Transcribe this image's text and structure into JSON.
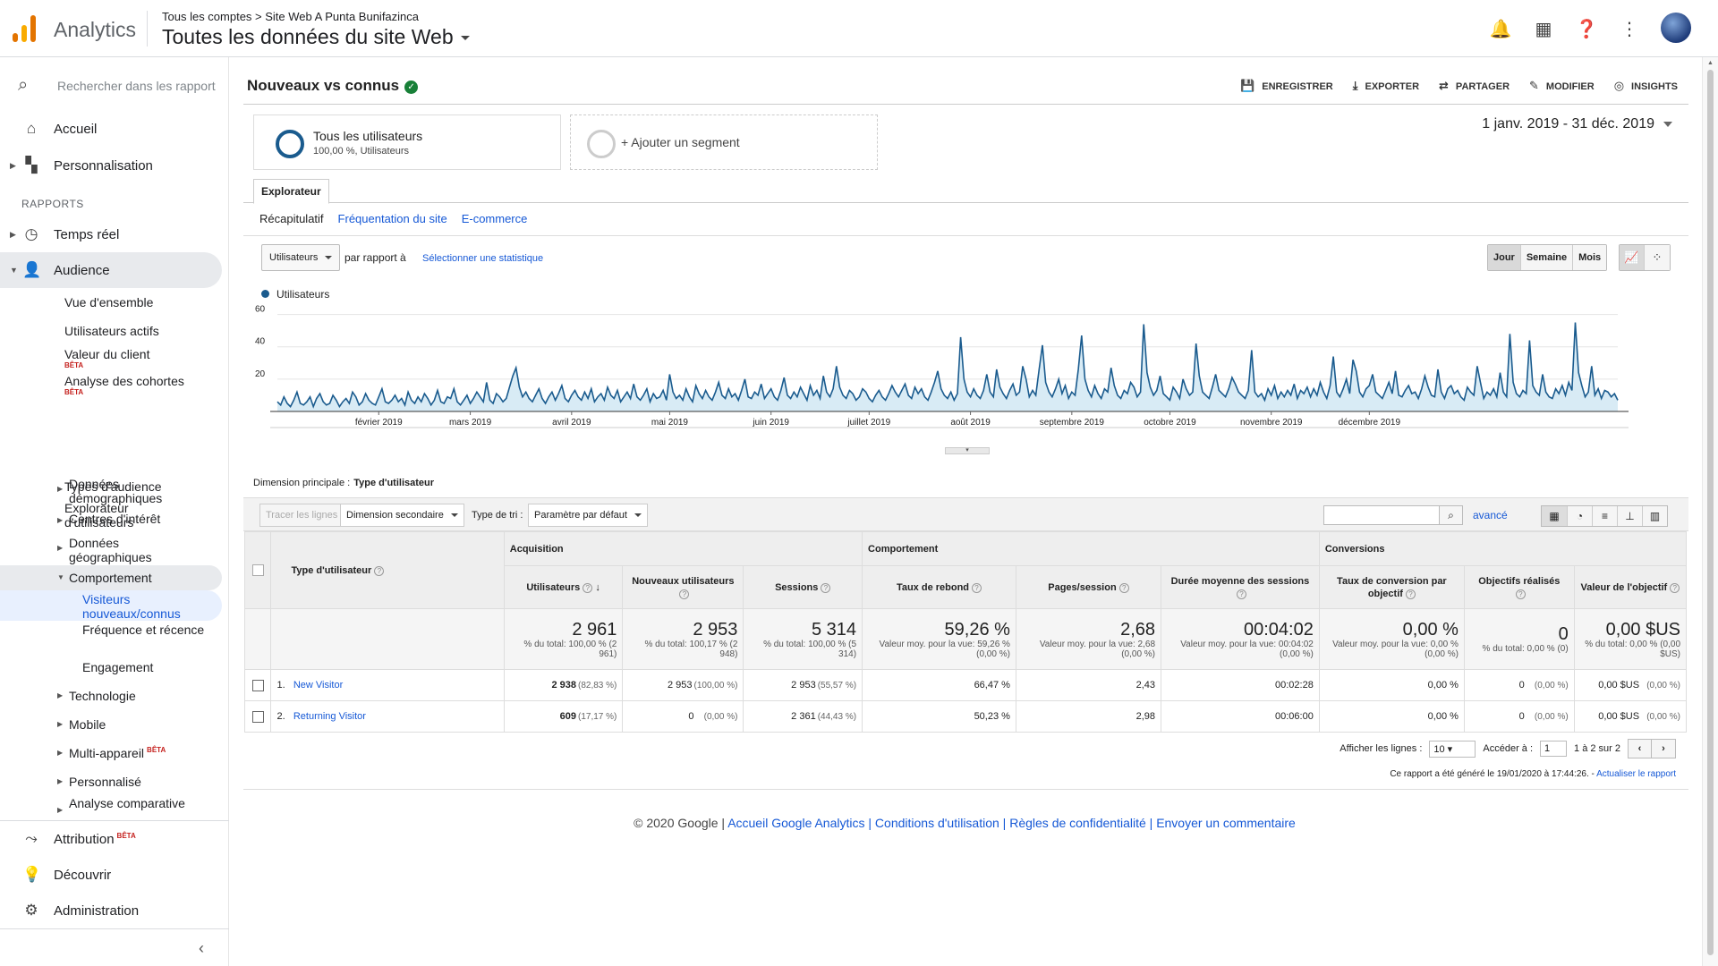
{
  "header": {
    "app_name": "Analytics",
    "breadcrumb": "Tous les comptes > Site Web A Punta Bunifazinca",
    "view_title": "Toutes les données du site Web"
  },
  "sidebar": {
    "search_placeholder": "Rechercher dans les rapport",
    "home": "Accueil",
    "custom": "Personnalisation",
    "reports_label": "RAPPORTS",
    "realtime": "Temps réel",
    "audience": "Audience",
    "audience_items": {
      "overview": "Vue d'ensemble",
      "active_users": "Utilisateurs actifs",
      "lifetime_value": "Valeur du client",
      "cohort": "Analyse des cohortes",
      "audiences": "Types d'audience",
      "user_explorer": "Explorateur d'utilisateurs",
      "demographics": "Données démographiques",
      "interests": "Centres d'intérêt",
      "geo": "Données géographiques",
      "behavior": "Comportement",
      "new_vs_returning": "Visiteurs nouveaux/connus",
      "frequency": "Fréquence et récence",
      "engagement": "Engagement",
      "technology": "Technologie",
      "mobile": "Mobile",
      "cross_device": "Multi-appareil",
      "custom": "Personnalisé",
      "benchmarking": "Analyse comparative"
    },
    "beta": "BÊTA",
    "attribution": "Attribution",
    "discover": "Découvrir",
    "admin": "Administration"
  },
  "report": {
    "title": "Nouveaux vs connus",
    "actions": [
      "ENREGISTRER",
      "EXPORTER",
      "PARTAGER",
      "MODIFIER",
      "INSIGHTS"
    ],
    "segment_title": "Tous les utilisateurs",
    "segment_sub": "100,00 %, Utilisateurs",
    "add_segment": "+ Ajouter un segment",
    "date_range": "1 janv. 2019 - 31 déc. 2019",
    "tab": "Explorateur",
    "subtabs": [
      "Récapitulatif",
      "Fréquentation du site",
      "E-commerce"
    ],
    "metric": "Utilisateurs",
    "vs": "par rapport à",
    "select_metric": "Sélectionner une statistique",
    "periods": [
      "Jour",
      "Semaine",
      "Mois"
    ],
    "primary_dim_label": "Dimension principale :",
    "primary_dim": "Type d'utilisateur"
  },
  "chart_data": {
    "type": "area",
    "series": [
      {
        "name": "Utilisateurs",
        "color": "#1a5b8e"
      }
    ],
    "yticks": [
      20,
      40,
      60
    ],
    "ylim": [
      0,
      62
    ],
    "xlabels": [
      "février 2019",
      "mars 2019",
      "avril 2019",
      "mai 2019",
      "juin 2019",
      "juillet 2019",
      "août 2019",
      "septembre 2019",
      "octobre 2019",
      "novembre 2019",
      "décembre 2019"
    ],
    "note": "daily values Jan 1 – Dec 31 2019, approx.",
    "values": [
      6,
      4,
      9,
      5,
      3,
      7,
      12,
      5,
      4,
      6,
      9,
      3,
      8,
      11,
      6,
      4,
      5,
      10,
      7,
      3,
      6,
      8,
      5,
      12,
      9,
      4,
      6,
      11,
      7,
      5,
      4,
      9,
      14,
      6,
      5,
      7,
      10,
      6,
      8,
      4,
      12,
      7,
      5,
      9,
      6,
      11,
      8,
      4,
      7,
      13,
      6,
      5,
      9,
      8,
      14,
      6,
      4,
      7,
      10,
      5,
      8,
      12,
      9,
      6,
      18,
      7,
      5,
      11,
      9,
      6,
      8,
      15,
      22,
      27,
      15,
      9,
      12,
      8,
      6,
      10,
      14,
      8,
      5,
      9,
      12,
      7,
      11,
      16,
      8,
      6,
      10,
      13,
      9,
      7,
      12,
      8,
      14,
      6,
      9,
      11,
      7,
      15,
      10,
      8,
      13,
      6,
      9,
      12,
      8,
      17,
      9,
      7,
      10,
      14,
      6,
      11,
      8,
      9,
      13,
      7,
      23,
      12,
      8,
      10,
      7,
      14,
      9,
      6,
      16,
      11,
      8,
      13,
      9,
      7,
      12,
      18,
      10,
      8,
      14,
      9,
      11,
      7,
      13,
      20,
      9,
      8,
      12,
      10,
      17,
      8,
      11,
      14,
      9,
      7,
      13,
      21,
      10,
      8,
      12,
      9,
      15,
      11,
      7,
      16,
      10,
      13,
      8,
      22,
      12,
      9,
      14,
      28,
      15,
      10,
      8,
      13,
      11,
      7,
      9,
      14,
      12,
      8,
      6,
      10,
      13,
      9,
      7,
      11,
      16,
      12,
      9,
      13,
      17,
      10,
      8,
      15,
      11,
      14,
      9,
      7,
      12,
      18,
      25,
      14,
      10,
      8,
      12,
      7,
      11,
      46,
      20,
      12,
      9,
      14,
      10,
      8,
      13,
      23,
      12,
      9,
      26,
      15,
      11,
      8,
      13,
      17,
      10,
      12,
      28,
      20,
      9,
      13,
      10,
      26,
      41,
      18,
      12,
      9,
      14,
      20,
      11,
      16,
      8,
      12,
      10,
      26,
      47,
      20,
      13,
      9,
      16,
      11,
      8,
      14,
      12,
      27,
      16,
      10,
      8,
      13,
      11,
      18,
      15,
      9,
      12,
      54,
      24,
      15,
      10,
      13,
      22,
      11,
      9,
      7,
      15,
      12,
      8,
      20,
      14,
      10,
      12,
      42,
      22,
      12,
      10,
      8,
      15,
      23,
      13,
      11,
      9,
      14,
      21,
      17,
      12,
      10,
      8,
      13,
      38,
      12,
      9,
      11,
      7,
      14,
      10,
      16,
      8,
      12,
      9,
      13,
      10,
      17,
      8,
      13,
      11,
      15,
      9,
      14,
      10,
      18,
      12,
      8,
      16,
      34,
      12,
      9,
      14,
      20,
      11,
      32,
      25,
      12,
      9,
      14,
      16,
      23,
      12,
      10,
      8,
      13,
      18,
      11,
      25,
      10,
      9,
      13,
      16,
      11,
      12,
      8,
      14,
      22,
      15,
      10,
      9,
      26,
      12,
      8,
      14,
      16,
      11,
      13,
      9,
      7,
      15,
      12,
      10,
      28,
      18,
      8,
      12,
      10,
      14,
      9,
      24,
      12,
      9,
      48,
      18,
      11,
      9,
      13,
      11,
      44,
      16,
      12,
      10,
      23,
      12,
      9,
      8,
      14,
      11,
      16,
      10,
      18,
      13,
      55,
      24,
      16,
      9,
      12,
      28,
      10,
      14,
      8,
      13,
      12,
      9,
      11,
      7
    ]
  },
  "table": {
    "toolbar": {
      "plot_rows": "Tracer les lignes",
      "secondary_dim": "Dimension secondaire",
      "sort_label": "Type de tri :",
      "sort_value": "Paramètre par défaut",
      "advanced": "avancé"
    },
    "groups": [
      "Acquisition",
      "Comportement",
      "Conversions"
    ],
    "dim_header": "Type d'utilisateur",
    "columns": [
      "Utilisateurs",
      "Nouveaux utilisateurs",
      "Sessions",
      "Taux de rebond",
      "Pages/session",
      "Durée moyenne des sessions",
      "Taux de conversion par objectif",
      "Objectifs réalisés",
      "Valeur de l'objectif"
    ],
    "totals": [
      {
        "big": "2 961",
        "sub": "% du total: 100,00 % (2 961)"
      },
      {
        "big": "2 953",
        "sub": "% du total: 100,17 % (2 948)"
      },
      {
        "big": "5 314",
        "sub": "% du total: 100,00 % (5 314)"
      },
      {
        "big": "59,26 %",
        "sub": "Valeur moy. pour la vue: 59,26 % (0,00 %)"
      },
      {
        "big": "2,68",
        "sub": "Valeur moy. pour la vue: 2,68 (0,00 %)"
      },
      {
        "big": "00:04:02",
        "sub": "Valeur moy. pour la vue: 00:04:02 (0,00 %)"
      },
      {
        "big": "0,00 %",
        "sub": "Valeur moy. pour la vue: 0,00 % (0,00 %)"
      },
      {
        "big": "0",
        "sub": "% du total: 0,00 % (0)"
      },
      {
        "big": "0,00 $US",
        "sub": "% du total: 0,00 % (0,00 $US)"
      }
    ],
    "rows": [
      {
        "idx": "1.",
        "name": "New Visitor",
        "users": "2 938",
        "users_pct": "(82,83 %)",
        "new": "2 953",
        "new_pct": "(100,00 %)",
        "sessions": "2 953",
        "sessions_pct": "(55,57 %)",
        "bounce": "66,47 %",
        "pages": "2,43",
        "duration": "00:02:28",
        "conv": "0,00 %",
        "goals": "0",
        "goals_pct": "(0,00 %)",
        "value": "0,00 $US",
        "value_pct": "(0,00 %)"
      },
      {
        "idx": "2.",
        "name": "Returning Visitor",
        "users": "609",
        "users_pct": "(17,17 %)",
        "new": "0",
        "new_pct": "(0,00 %)",
        "sessions": "2 361",
        "sessions_pct": "(44,43 %)",
        "bounce": "50,23 %",
        "pages": "2,98",
        "duration": "00:06:00",
        "conv": "0,00 %",
        "goals": "0",
        "goals_pct": "(0,00 %)",
        "value": "0,00 $US",
        "value_pct": "(0,00 %)"
      }
    ],
    "pager": {
      "show_rows": "Afficher les lignes :",
      "rows_value": "10",
      "goto": "Accéder à :",
      "goto_value": "1",
      "range": "1 à 2 sur 2"
    },
    "generated": "Ce rapport a été généré le 19/01/2020 à 17:44:26. - ",
    "refresh": "Actualiser le rapport"
  },
  "footer": {
    "copyright": "© 2020 Google | ",
    "links": [
      "Accueil Google Analytics",
      "Conditions d'utilisation",
      "Règles de confidentialité",
      "Envoyer un commentaire"
    ],
    "sep": " | "
  },
  "colors": {
    "accent": "#1a5b8e",
    "link": "#1558d6",
    "logo": [
      "#f9ab00",
      "#e37400",
      "#e37400"
    ]
  }
}
